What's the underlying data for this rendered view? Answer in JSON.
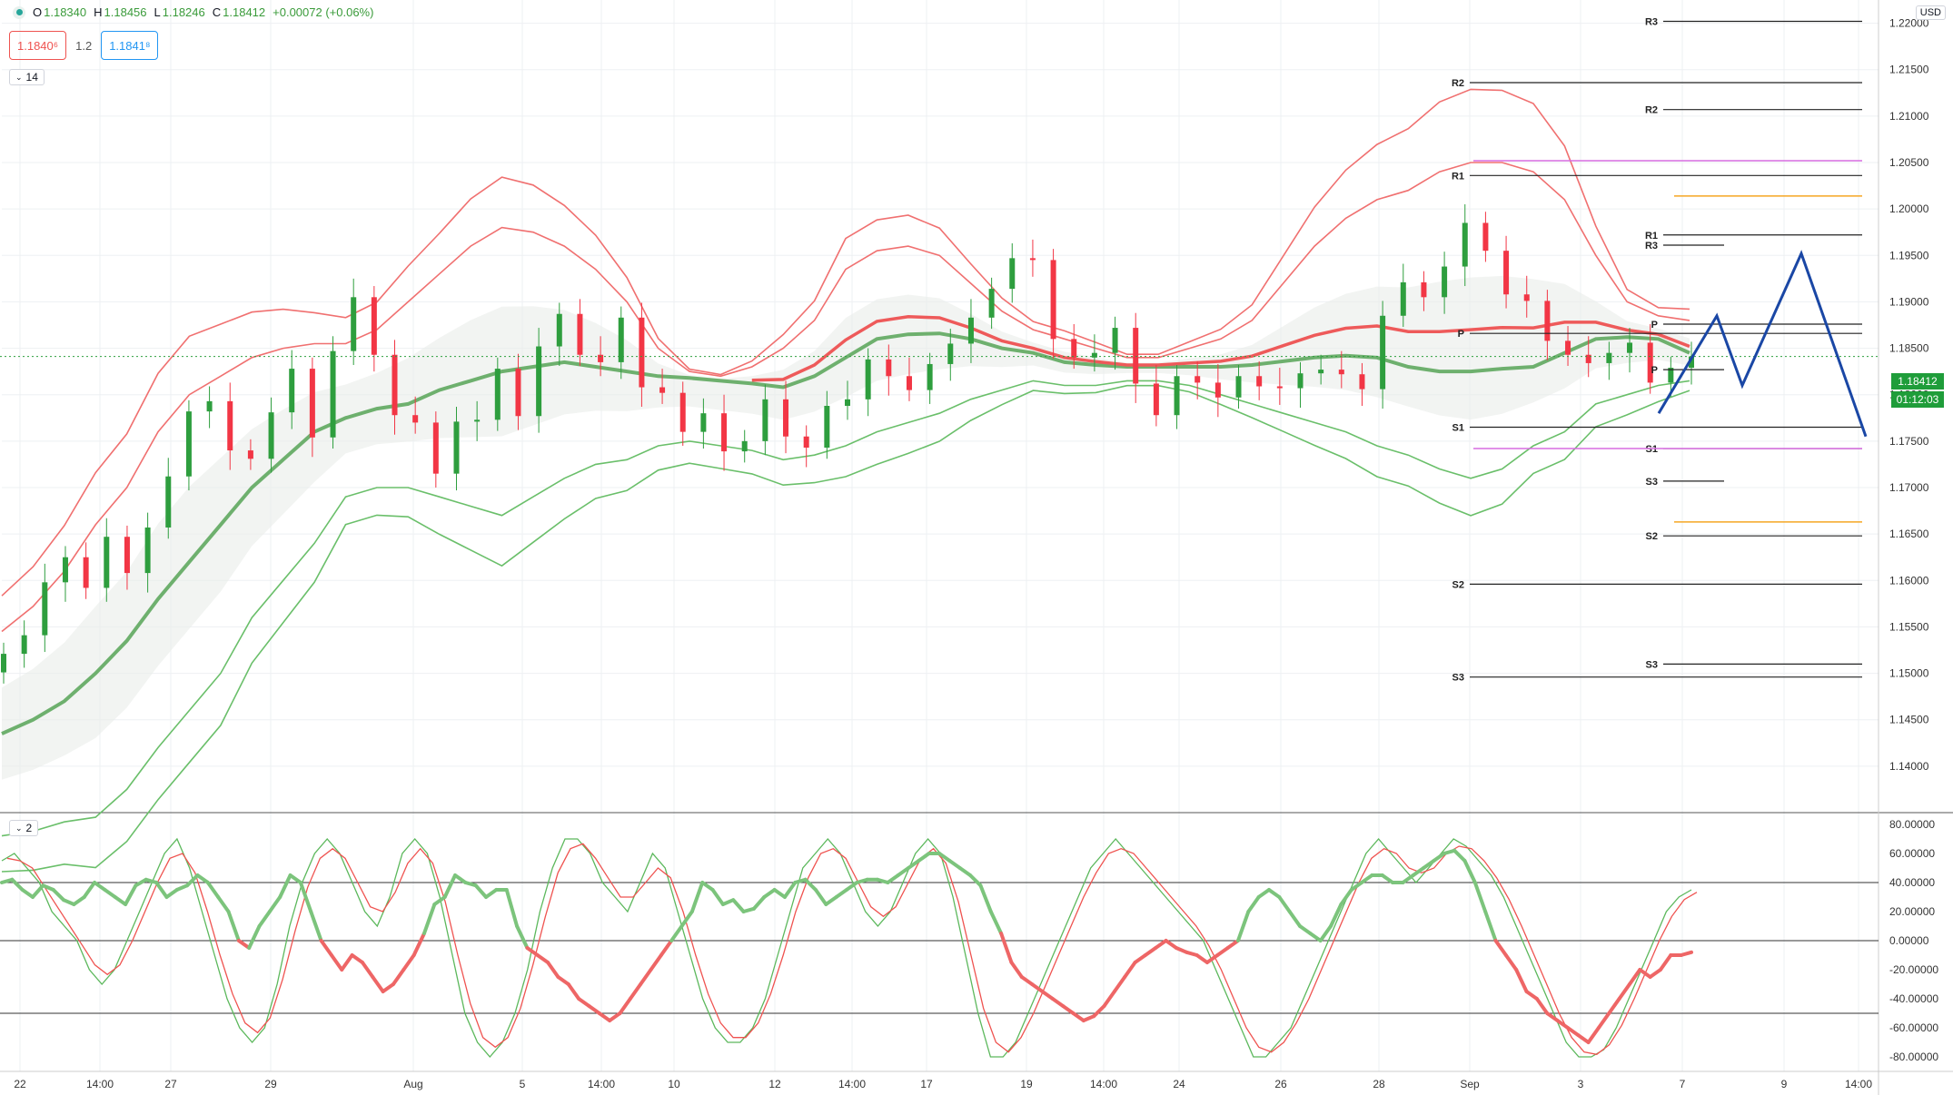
{
  "header": {
    "open_label": "O",
    "open": "1.18340",
    "high_label": "H",
    "high": "1.18456",
    "low_label": "L",
    "low": "1.18246",
    "close_label": "C",
    "close": "1.18412",
    "change": "+0.00072 (+0.06%)"
  },
  "spread": {
    "sell": "1.1840⁶",
    "mid": "1.2",
    "buy": "1.1841⁸"
  },
  "toggles": {
    "main": "14",
    "osc": "2"
  },
  "currency": "USD",
  "price_tag": {
    "value": "1.18412",
    "countdown": "01:12:03"
  },
  "colors": {
    "bull": "#2e9e3e",
    "bear": "#f23645",
    "upper_band": "#f07070",
    "lower_band": "#6abf6a",
    "forecast": "#1a47a5",
    "magenta": "#d76de0",
    "orange": "#f5a623"
  },
  "chart_data": {
    "type": "candlestick",
    "ylim": [
      1.135,
      1.2225
    ],
    "yticks": [
      "1.14000",
      "1.14500",
      "1.15000",
      "1.15500",
      "1.16000",
      "1.16500",
      "1.17000",
      "1.17500",
      "1.18000",
      "1.18500",
      "1.19000",
      "1.19500",
      "1.20000",
      "1.20500",
      "1.21000",
      "1.21500",
      "1.22000"
    ],
    "xticks": [
      "22",
      "14:00",
      "27",
      "29",
      "Aug",
      "5",
      "14:00",
      "10",
      "12",
      "14:00",
      "17",
      "19",
      "14:00",
      "24",
      "26",
      "28",
      "Sep",
      "3",
      "7",
      "9",
      "14:00"
    ],
    "close_series": [
      1.1521,
      1.1541,
      1.1598,
      1.1625,
      1.1592,
      1.1647,
      1.1608,
      1.1657,
      1.1712,
      1.1782,
      1.1793,
      1.174,
      1.1731,
      1.1781,
      1.1828,
      1.1754,
      1.1847,
      1.1905,
      1.1843,
      1.1778,
      1.177,
      1.1715,
      1.1771,
      1.1773,
      1.1828,
      1.1777,
      1.1852,
      1.1887,
      1.1843,
      1.1835,
      1.1883,
      1.1808,
      1.1802,
      1.176,
      1.178,
      1.1739,
      1.175,
      1.1795,
      1.1755,
      1.1743,
      1.1788,
      1.1795,
      1.1838,
      1.182,
      1.1805,
      1.1833,
      1.1855,
      1.1883,
      1.1914,
      1.1947,
      1.1945,
      1.186,
      1.184,
      1.1845,
      1.1872,
      1.1812,
      1.1778,
      1.182,
      1.1813,
      1.1797,
      1.182,
      1.1809,
      1.1807,
      1.1823,
      1.1827,
      1.1822,
      1.1806,
      1.1885,
      1.1921,
      1.1905,
      1.1938,
      1.1985,
      1.1955,
      1.1908,
      1.1901,
      1.1858,
      1.1843,
      1.1834,
      1.1845,
      1.1856,
      1.1813,
      1.1829,
      1.1841
    ],
    "ma_bands": {
      "center": [
        1.1435,
        1.145,
        1.147,
        1.15,
        1.1535,
        1.158,
        1.162,
        1.166,
        1.17,
        1.173,
        1.176,
        1.1775,
        1.1785,
        1.179,
        1.1805,
        1.1815,
        1.1825,
        1.183,
        1.1835,
        1.183,
        1.1825,
        1.182,
        1.1818,
        1.1815,
        1.1812,
        1.1808,
        1.182,
        1.184,
        1.186,
        1.1865,
        1.1866,
        1.186,
        1.185,
        1.1845,
        1.1835,
        1.1832,
        1.183,
        1.183,
        1.183,
        1.183,
        1.1832,
        1.1836,
        1.184,
        1.1842,
        1.184,
        1.183,
        1.1825,
        1.1825,
        1.1828,
        1.183,
        1.1845,
        1.186,
        1.1862,
        1.186,
        1.1845
      ],
      "upper": [
        1.1545,
        1.1572,
        1.161,
        1.166,
        1.17,
        1.176,
        1.18,
        1.182,
        1.184,
        1.185,
        1.1855,
        1.1855,
        1.187,
        1.19,
        1.193,
        1.196,
        1.198,
        1.1975,
        1.196,
        1.1935,
        1.19,
        1.185,
        1.1825,
        1.182,
        1.183,
        1.185,
        1.188,
        1.1935,
        1.1955,
        1.196,
        1.195,
        1.192,
        1.189,
        1.187,
        1.186,
        1.185,
        1.184,
        1.184,
        1.185,
        1.186,
        1.188,
        1.192,
        1.196,
        1.199,
        1.201,
        1.202,
        1.204,
        1.205,
        1.205,
        1.204,
        1.201,
        1.195,
        1.19,
        1.1885,
        1.188
      ],
      "lower": [
        1.1325,
        1.133,
        1.134,
        1.1345,
        1.1375,
        1.142,
        1.146,
        1.15,
        1.156,
        1.16,
        1.164,
        1.169,
        1.17,
        1.17,
        1.169,
        1.168,
        1.167,
        1.169,
        1.171,
        1.1725,
        1.173,
        1.1745,
        1.175,
        1.1745,
        1.174,
        1.173,
        1.1735,
        1.1745,
        1.176,
        1.177,
        1.178,
        1.1795,
        1.1805,
        1.1815,
        1.181,
        1.181,
        1.1815,
        1.1815,
        1.181,
        1.18,
        1.179,
        1.178,
        1.177,
        1.176,
        1.1745,
        1.1735,
        1.172,
        1.171,
        1.172,
        1.1745,
        1.176,
        1.179,
        1.18,
        1.181,
        1.1815
      ]
    },
    "pivots": [
      {
        "label": "R3",
        "value": 1.2202
      },
      {
        "label": "R2",
        "value": 1.2136
      },
      {
        "label": "R2",
        "value": 1.2107
      },
      {
        "label": "R1",
        "value": 1.2036
      },
      {
        "label": "R1",
        "value": 1.1972
      },
      {
        "label": "R3",
        "value": 1.1961
      },
      {
        "label": "P",
        "value": 1.1876
      },
      {
        "label": "P",
        "value": 1.1866
      },
      {
        "label": "P",
        "value": 1.1827
      },
      {
        "label": "S1",
        "value": 1.1765
      },
      {
        "label": "S1",
        "value": 1.1742
      },
      {
        "label": "S3",
        "value": 1.1707
      },
      {
        "label": "S2",
        "value": 1.1648
      },
      {
        "label": "S2",
        "value": 1.1596
      },
      {
        "label": "S3",
        "value": 1.151
      },
      {
        "label": "S3",
        "value": 1.1496
      }
    ],
    "forecast_path": [
      [
        0,
        1.178
      ],
      [
        1,
        1.1885
      ],
      [
        2,
        1.181
      ],
      [
        3,
        1.1952
      ],
      [
        4,
        1.1755
      ]
    ],
    "oscillator": {
      "ylim": [
        -90,
        85
      ],
      "yticks": [
        "80.00000",
        "60.00000",
        "40.00000",
        "20.00000",
        "0.00000",
        "-20.00000",
        "-40.00000",
        "-60.00000",
        "-80.00000"
      ],
      "levels": [
        40,
        0,
        -50
      ],
      "main": [
        40,
        42,
        35,
        30,
        38,
        35,
        28,
        25,
        30,
        40,
        35,
        30,
        25,
        38,
        42,
        40,
        30,
        35,
        38,
        45,
        40,
        30,
        20,
        0,
        -5,
        10,
        20,
        30,
        45,
        40,
        20,
        0,
        -10,
        -20,
        -10,
        -15,
        -25,
        -35,
        -30,
        -20,
        -10,
        5,
        25,
        30,
        45,
        40,
        38,
        30,
        35,
        35,
        10,
        -5,
        -10,
        -15,
        -25,
        -30,
        -40,
        -45,
        -50,
        -55,
        -50,
        -40,
        -30,
        -20,
        -10,
        0,
        10,
        20,
        40,
        35,
        25,
        28,
        20,
        22,
        30,
        35,
        30,
        40,
        42,
        35,
        25,
        30,
        35,
        40,
        42,
        42,
        40,
        45,
        50,
        55,
        60,
        60,
        55,
        50,
        45,
        38,
        20,
        5,
        -15,
        -25,
        -30,
        -35,
        -40,
        -45,
        -50,
        -55,
        -52,
        -45,
        -35,
        -25,
        -15,
        -10,
        -5,
        0,
        -5,
        -8,
        -10,
        -15,
        -10,
        -5,
        0,
        20,
        30,
        35,
        30,
        20,
        10,
        5,
        0,
        10,
        25,
        35,
        40,
        45,
        45,
        40,
        40,
        45,
        50,
        55,
        60,
        62,
        55,
        40,
        20,
        0,
        -10,
        -20,
        -35,
        -40,
        -50,
        -55,
        -60,
        -65,
        -70,
        -60,
        -50,
        -40,
        -30,
        -20,
        -25,
        -20,
        -10,
        -10,
        -8
      ],
      "fast": [
        55,
        60,
        50,
        40,
        20,
        10,
        0,
        -20,
        -30,
        -20,
        0,
        20,
        40,
        60,
        70,
        50,
        20,
        -10,
        -40,
        -60,
        -70,
        -60,
        -30,
        10,
        40,
        60,
        70,
        60,
        40,
        20,
        10,
        30,
        60,
        70,
        60,
        30,
        -10,
        -50,
        -70,
        -80,
        -70,
        -50,
        -20,
        20,
        50,
        70,
        70,
        60,
        40,
        30,
        20,
        40,
        60,
        50,
        20,
        -10,
        -40,
        -60,
        -70,
        -70,
        -60,
        -40,
        -10,
        20,
        50,
        60,
        70,
        60,
        40,
        20,
        10,
        20,
        40,
        60,
        70,
        60,
        30,
        -10,
        -50,
        -80,
        -80,
        -70,
        -50,
        -30,
        -10,
        10,
        30,
        50,
        60,
        70,
        60,
        50,
        40,
        30,
        20,
        10,
        0,
        -20,
        -40,
        -60,
        -80,
        -80,
        -70,
        -60,
        -40,
        -20,
        0,
        20,
        40,
        60,
        70,
        60,
        50,
        40,
        50,
        60,
        70,
        65,
        55,
        45,
        30,
        10,
        -10,
        -30,
        -50,
        -70,
        -80,
        -80,
        -75,
        -60,
        -40,
        -20,
        0,
        20,
        30,
        35
      ]
    }
  }
}
